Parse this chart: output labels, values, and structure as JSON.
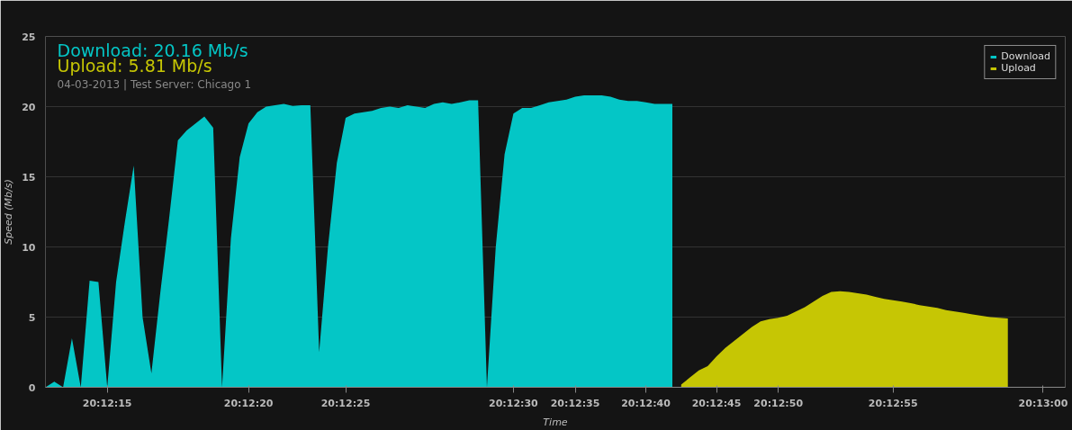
{
  "chart_data": {
    "type": "area",
    "xlabel": "Time",
    "ylabel": "Speed (Mb/s)",
    "annotations": [
      "Download: 20.16 Mb/s",
      "Upload: 5.81 Mb/s",
      "04-03-2013 | Test Server: Chicago 1"
    ],
    "ylim": [
      0,
      25
    ],
    "yticks": [
      0,
      5,
      10,
      15,
      20,
      25
    ],
    "categories": [
      null,
      null,
      null,
      null,
      null,
      null,
      null,
      "20:12:15",
      null,
      null,
      null,
      null,
      null,
      null,
      null,
      null,
      null,
      null,
      null,
      null,
      null,
      null,
      null,
      "20:12:20",
      null,
      null,
      null,
      null,
      null,
      null,
      null,
      null,
      null,
      null,
      "20:12:25",
      null,
      null,
      null,
      null,
      null,
      null,
      null,
      null,
      null,
      null,
      null,
      null,
      null,
      null,
      null,
      null,
      null,
      null,
      "20:12:30",
      null,
      null,
      null,
      null,
      null,
      null,
      "20:12:35",
      null,
      null,
      null,
      null,
      null,
      null,
      null,
      "20:12:40",
      null,
      null,
      null,
      null,
      null,
      null,
      null,
      "20:12:45",
      null,
      null,
      null,
      null,
      null,
      null,
      "20:12:50",
      null,
      null,
      null,
      null,
      null,
      null,
      null,
      null,
      null,
      null,
      null,
      null,
      "20:12:55",
      null,
      null,
      null,
      null,
      null,
      null,
      null,
      null,
      null,
      null,
      null,
      null,
      null,
      null,
      null,
      null,
      "20:13:00"
    ],
    "grid": "y",
    "legend": "top right",
    "series": [
      {
        "name": "Download",
        "color": "#04c6c6",
        "values": [
          0,
          0.4,
          0,
          3.5,
          0,
          7.6,
          7.5,
          0,
          7.5,
          11.8,
          15.8,
          5,
          1,
          6.7,
          12,
          17.6,
          18.3,
          18.8,
          19.3,
          18.5,
          0,
          10.6,
          16.4,
          18.8,
          19.6,
          20,
          20.1,
          20.2,
          20.05,
          20.1,
          20.1,
          2.5,
          10,
          16,
          19.2,
          19.5,
          19.6,
          19.7,
          19.9,
          20,
          19.9,
          20.1,
          20,
          19.9,
          20.2,
          20.3,
          20.2,
          20.3,
          20.45,
          20.45,
          0,
          10,
          16.6,
          19.5,
          19.9,
          19.9,
          20.1,
          20.3,
          20.4,
          20.5,
          20.7,
          20.8,
          20.8,
          20.8,
          20.7,
          20.5,
          20.4,
          20.4,
          20.3,
          20.2,
          20.2,
          20.2,
          null,
          null,
          null,
          null,
          null,
          null,
          null,
          null,
          null,
          null,
          null,
          null,
          null,
          null,
          null,
          null,
          null,
          null,
          null,
          null,
          null,
          null,
          null,
          null,
          null,
          null,
          null,
          null,
          null,
          null,
          null,
          null,
          null,
          null,
          null,
          null,
          null,
          null,
          null,
          null,
          null,
          null
        ]
      },
      {
        "name": "Upload",
        "color": "#c6c604",
        "values": [
          null,
          null,
          null,
          null,
          null,
          null,
          null,
          null,
          null,
          null,
          null,
          null,
          null,
          null,
          null,
          null,
          null,
          null,
          null,
          null,
          null,
          null,
          null,
          null,
          null,
          null,
          null,
          null,
          null,
          null,
          null,
          null,
          null,
          null,
          null,
          null,
          null,
          null,
          null,
          null,
          null,
          null,
          null,
          null,
          null,
          null,
          null,
          null,
          null,
          null,
          null,
          null,
          null,
          null,
          null,
          null,
          null,
          null,
          null,
          null,
          null,
          null,
          null,
          null,
          null,
          null,
          null,
          null,
          null,
          null,
          null,
          null,
          0.2,
          0.7,
          1.2,
          1.5,
          2.2,
          2.8,
          3.3,
          3.8,
          4.3,
          4.7,
          4.85,
          4.95,
          5.1,
          5.4,
          5.7,
          6.1,
          6.5,
          6.8,
          6.85,
          6.8,
          6.7,
          6.6,
          6.45,
          6.3,
          6.2,
          6.1,
          6,
          5.85,
          5.75,
          5.65,
          5.5,
          5.4,
          5.3,
          5.2,
          5.1,
          5,
          4.95,
          4.9,
          null,
          null,
          null,
          null
        ]
      }
    ]
  }
}
